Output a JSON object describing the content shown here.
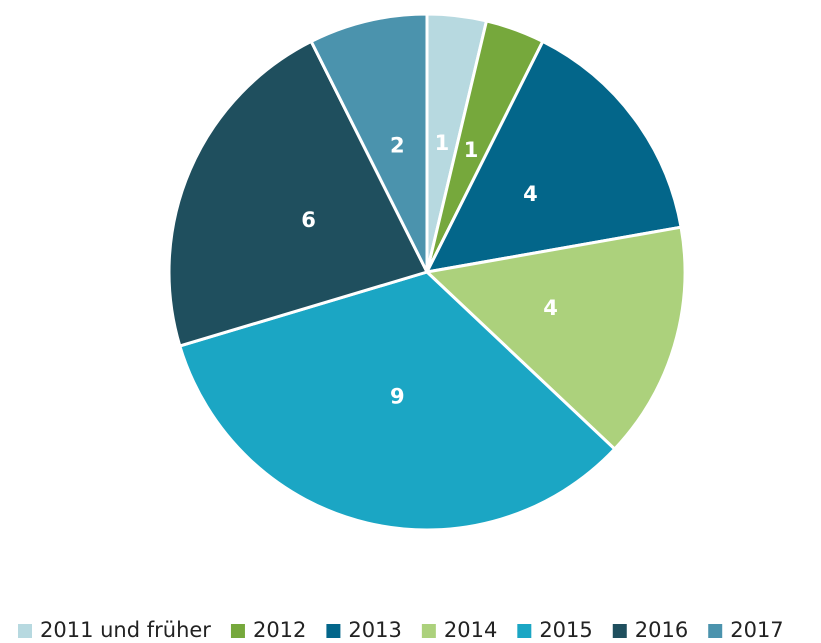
{
  "chart_data": {
    "type": "pie",
    "categories": [
      "2011 und früher",
      "2012",
      "2013",
      "2014",
      "2015",
      "2016",
      "2017"
    ],
    "values": [
      1,
      1,
      4,
      4,
      9,
      6,
      2
    ],
    "colors": [
      "#b7d9e0",
      "#76a83c",
      "#03668a",
      "#acd17c",
      "#1ba6c4",
      "#1f4f5e",
      "#4b93ad"
    ],
    "legend": "bottom"
  }
}
